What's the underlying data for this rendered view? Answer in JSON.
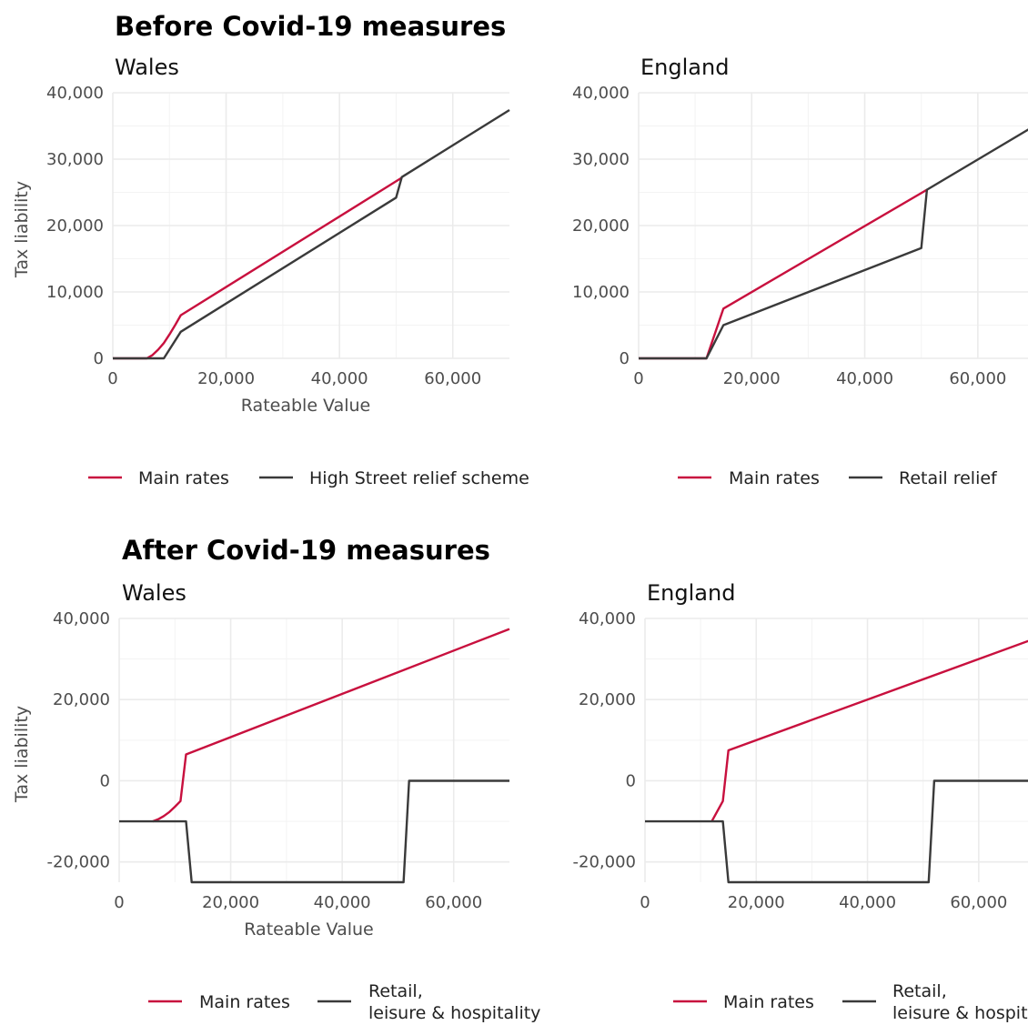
{
  "sections": [
    {
      "title": "Before Covid-19 measures"
    },
    {
      "title": "After Covid-19 measures"
    }
  ],
  "colors": {
    "main": "#c8103e",
    "relief": "#3a3a3a"
  },
  "chart_data": [
    {
      "type": "line",
      "section": 0,
      "title": "Wales",
      "xlabel": "Rateable Value",
      "ylabel": "Tax liability",
      "xlim": [
        0,
        70000
      ],
      "ylim": [
        0,
        40000
      ],
      "xticks": [
        0,
        20000,
        40000,
        60000
      ],
      "xtick_labels": [
        "0",
        "20,000",
        "40,000",
        "60,000"
      ],
      "yticks": [
        0,
        10000,
        20000,
        30000,
        40000
      ],
      "ytick_labels": [
        "0",
        "10,000",
        "20,000",
        "30,000",
        "40,000"
      ],
      "grid": true,
      "legend": "bottom",
      "series": [
        {
          "name": "Main rates",
          "color": "#c8103e",
          "x": [
            0,
            6000,
            7000,
            8000,
            9000,
            10000,
            11000,
            12000,
            51000
          ],
          "y": [
            0,
            0,
            500,
            1300,
            2300,
            3600,
            5000,
            6500,
            27200
          ]
        },
        {
          "name": "High Street relief scheme",
          "color": "#3a3a3a",
          "x": [
            0,
            9000,
            12000,
            50000,
            51000,
            70000
          ],
          "y": [
            0,
            0,
            4000,
            24200,
            27300,
            37400
          ]
        }
      ]
    },
    {
      "type": "line",
      "section": 0,
      "title": "England",
      "xlabel": "",
      "ylabel": "",
      "xlim": [
        0,
        70000
      ],
      "ylim": [
        0,
        40000
      ],
      "xticks": [
        0,
        20000,
        40000,
        60000
      ],
      "xtick_labels": [
        "0",
        "20,000",
        "40,000",
        "60,000"
      ],
      "yticks": [
        0,
        10000,
        20000,
        30000,
        40000
      ],
      "ytick_labels": [
        "0",
        "10,000",
        "20,000",
        "30,000",
        "40,000"
      ],
      "grid": true,
      "legend": "bottom",
      "series": [
        {
          "name": "Main rates",
          "color": "#c8103e",
          "x": [
            0,
            12000,
            15000,
            51000
          ],
          "y": [
            0,
            0,
            7500,
            25400
          ]
        },
        {
          "name": "Retail relief",
          "color": "#3a3a3a",
          "x": [
            0,
            12000,
            15000,
            50000,
            51000,
            70000
          ],
          "y": [
            0,
            0,
            5000,
            16600,
            25400,
            35000
          ]
        }
      ]
    },
    {
      "type": "line",
      "section": 1,
      "title": "Wales",
      "xlabel": "Rateable Value",
      "ylabel": "Tax liability",
      "xlim": [
        0,
        70000
      ],
      "ylim": [
        -25000,
        40000
      ],
      "xticks": [
        0,
        20000,
        40000,
        60000
      ],
      "xtick_labels": [
        "0",
        "20,000",
        "40,000",
        "60,000"
      ],
      "yticks": [
        -20000,
        0,
        20000,
        40000
      ],
      "ytick_labels": [
        "-20,000",
        "0",
        "20,000",
        "40,000"
      ],
      "grid": true,
      "legend": "bottom",
      "series": [
        {
          "name": "Main rates",
          "color": "#c8103e",
          "x": [
            6000,
            7000,
            8000,
            9000,
            10000,
            11000,
            12000,
            70000
          ],
          "y": [
            -10000,
            -9500,
            -8700,
            -7700,
            -6400,
            -5000,
            6500,
            37400
          ]
        },
        {
          "name": "Retail, leisure & hospitality",
          "color": "#3a3a3a",
          "x": [
            0,
            12000,
            13000,
            51000,
            52000,
            70000
          ],
          "y": [
            -10000,
            -10000,
            -25000,
            -25000,
            0,
            0
          ]
        }
      ]
    },
    {
      "type": "line",
      "section": 1,
      "title": "England",
      "xlabel": "",
      "ylabel": "",
      "xlim": [
        0,
        70000
      ],
      "ylim": [
        -25000,
        40000
      ],
      "xticks": [
        0,
        20000,
        40000,
        60000
      ],
      "xtick_labels": [
        "0",
        "20,000",
        "40,000",
        "60,000"
      ],
      "yticks": [
        -20000,
        0,
        20000,
        40000
      ],
      "ytick_labels": [
        "-20,000",
        "0",
        "20,000",
        "40,000"
      ],
      "grid": true,
      "legend": "bottom",
      "series": [
        {
          "name": "Main rates",
          "color": "#c8103e",
          "x": [
            12000,
            14000,
            15000,
            70000
          ],
          "y": [
            -10000,
            -5000,
            7500,
            35000
          ]
        },
        {
          "name": "Retail, leisure & hospitality",
          "color": "#3a3a3a",
          "x": [
            0,
            14000,
            15000,
            51000,
            52000,
            70000
          ],
          "y": [
            -10000,
            -10000,
            -25000,
            -25000,
            0,
            0
          ]
        }
      ]
    }
  ]
}
